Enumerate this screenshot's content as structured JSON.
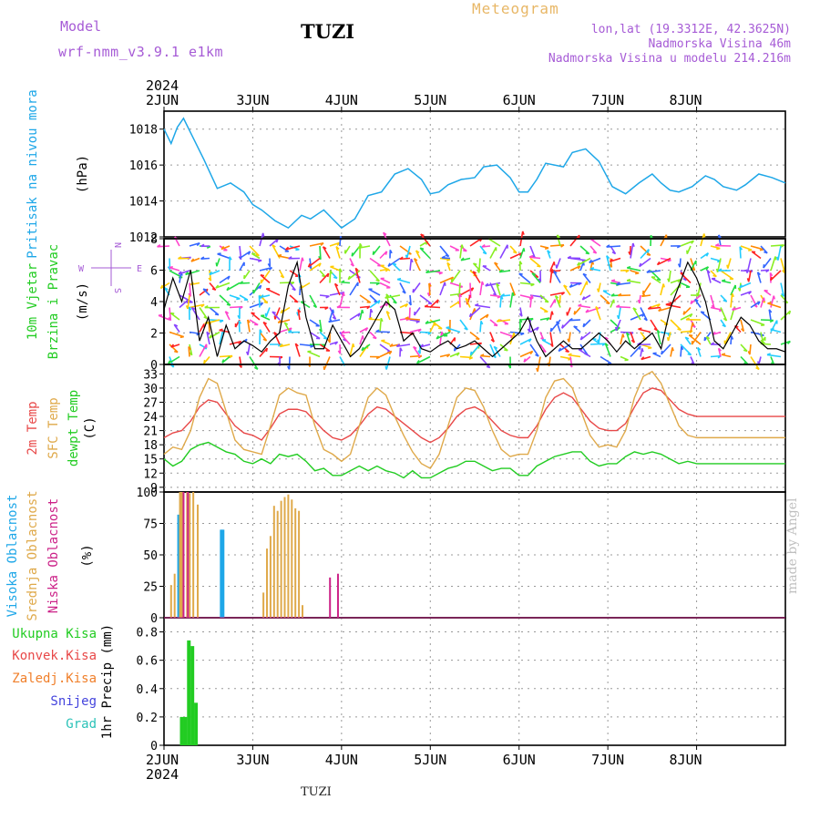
{
  "header": {
    "model_label": "Model",
    "model_name": "wrf-nmm_v3.9.1  e1km",
    "station": "TUZI",
    "meteogram": "Meteogram",
    "location": "lon,lat (19.3312E, 42.3625N)",
    "elevation": "Nadmorska Visina 46m",
    "model_elevation": "Nadmorska Visina u modelu 214.216m"
  },
  "footer": {
    "station": "TUZI",
    "watermark": "made by Angel"
  },
  "colors": {
    "pressure": "#1ea7e8",
    "temp2m": "#e84848",
    "sfc": "#dfa94a",
    "dewpt": "#22cc22",
    "high_cloud": "#1ea7e8",
    "mid_cloud": "#dfa94a",
    "low_cloud": "#cc2288",
    "total_rain": "#22cc22",
    "conv_rain": "#e84848",
    "freezing": "#f07f2a",
    "snow": "#4444dd",
    "hail": "#2bc2b8"
  },
  "chart_data": [
    {
      "type": "line",
      "name": "pressure",
      "ylabel": [
        "Pritisak na nivou mora",
        "(hPa)"
      ],
      "ylim": [
        1012,
        1019
      ],
      "yticks": [
        "1012",
        "1014",
        "1016",
        "1018"
      ],
      "x_days": [
        "2JUN",
        "3JUN",
        "4JUN",
        "5JUN",
        "6JUN",
        "7JUN",
        "8JUN"
      ],
      "year": "2024",
      "x": [
        0,
        0.08,
        0.15,
        0.22,
        0.3,
        0.45,
        0.6,
        0.75,
        0.9,
        1.0,
        1.1,
        1.25,
        1.4,
        1.55,
        1.65,
        1.8,
        2.0,
        2.15,
        2.3,
        2.45,
        2.6,
        2.75,
        2.9,
        3.0,
        3.1,
        3.2,
        3.35,
        3.5,
        3.6,
        3.75,
        3.9,
        4.0,
        4.1,
        4.2,
        4.3,
        4.5,
        4.6,
        4.75,
        4.9,
        5.05,
        5.2,
        5.35,
        5.5,
        5.6,
        5.7,
        5.8,
        5.95,
        6.1,
        6.2,
        6.3,
        6.45,
        6.55,
        6.7,
        6.85,
        7.0
      ],
      "y": [
        1018.0,
        1017.2,
        1018.1,
        1018.6,
        1017.8,
        1016.3,
        1014.7,
        1015.0,
        1014.5,
        1013.8,
        1013.5,
        1012.9,
        1012.5,
        1013.2,
        1013.0,
        1013.5,
        1012.5,
        1013.0,
        1014.3,
        1014.5,
        1015.5,
        1015.8,
        1015.2,
        1014.4,
        1014.5,
        1014.9,
        1015.2,
        1015.3,
        1015.9,
        1016.0,
        1015.3,
        1014.5,
        1014.5,
        1015.2,
        1016.1,
        1015.9,
        1016.7,
        1016.9,
        1016.2,
        1014.8,
        1014.4,
        1015.0,
        1015.5,
        1015.0,
        1014.6,
        1014.5,
        1014.8,
        1015.4,
        1015.2,
        1014.8,
        1014.6,
        1014.9,
        1015.5,
        1015.3,
        1015.0
      ]
    },
    {
      "type": "line",
      "name": "wind",
      "ylabel": [
        "10m Vjetar",
        "Brzina i Pravac",
        "(m/s)"
      ],
      "ylim": [
        0,
        8
      ],
      "yticks": [
        "0",
        "2",
        "4",
        "6",
        "8"
      ],
      "compass": {
        "n": "N",
        "s": "S",
        "e": "E",
        "w": "W"
      },
      "x": [
        0,
        0.1,
        0.2,
        0.3,
        0.4,
        0.5,
        0.6,
        0.7,
        0.8,
        0.9,
        1.0,
        1.1,
        1.2,
        1.3,
        1.4,
        1.5,
        1.6,
        1.7,
        1.8,
        1.9,
        2.0,
        2.1,
        2.2,
        2.3,
        2.4,
        2.5,
        2.6,
        2.7,
        2.8,
        2.9,
        3.0,
        3.1,
        3.2,
        3.3,
        3.4,
        3.5,
        3.6,
        3.7,
        3.8,
        3.9,
        4.0,
        4.1,
        4.2,
        4.3,
        4.4,
        4.5,
        4.6,
        4.7,
        4.8,
        4.9,
        5.0,
        5.1,
        5.2,
        5.3,
        5.4,
        5.5,
        5.6,
        5.7,
        5.8,
        5.9,
        6.0,
        6.1,
        6.2,
        6.3,
        6.4,
        6.5,
        6.6,
        6.7,
        6.8,
        6.9,
        7.0
      ],
      "y": [
        3.5,
        5.5,
        4.0,
        6.0,
        1.5,
        3.0,
        0.5,
        2.5,
        1.0,
        1.5,
        1.2,
        0.8,
        1.5,
        2.0,
        5.0,
        6.5,
        3.0,
        1.0,
        1.0,
        2.5,
        1.5,
        0.5,
        1.0,
        2.0,
        3.0,
        4.0,
        3.5,
        1.5,
        2.0,
        1.0,
        0.8,
        1.2,
        1.5,
        1.0,
        1.2,
        1.5,
        1.0,
        0.5,
        1.0,
        1.5,
        2.0,
        3.0,
        1.5,
        0.5,
        1.0,
        1.5,
        1.0,
        1.0,
        1.5,
        2.0,
        1.5,
        0.8,
        1.5,
        1.0,
        1.5,
        2.0,
        1.0,
        3.5,
        5.0,
        6.5,
        5.5,
        4.0,
        1.5,
        1.0,
        2.0,
        3.0,
        2.5,
        1.5,
        1.0,
        1.0,
        0.8
      ]
    },
    {
      "type": "line",
      "name": "temperature",
      "ylabel": [
        "2m Temp",
        "SFC Temp",
        "dewpt Temp",
        "(C)"
      ],
      "ylim": [
        8,
        35
      ],
      "yticks": [
        "9",
        "12",
        "15",
        "18",
        "21",
        "24",
        "27",
        "30",
        "33"
      ],
      "series": [
        {
          "name": "2m Temp",
          "key": "temp2m",
          "x": [
            0,
            0.1,
            0.2,
            0.3,
            0.4,
            0.5,
            0.6,
            0.7,
            0.8,
            0.9,
            1.0,
            1.1,
            1.2,
            1.3,
            1.4,
            1.5,
            1.6,
            1.7,
            1.8,
            1.9,
            2.0,
            2.1,
            2.2,
            2.3,
            2.4,
            2.5,
            2.6,
            2.7,
            2.8,
            2.9,
            3.0,
            3.1,
            3.2,
            3.3,
            3.4,
            3.5,
            3.6,
            3.7,
            3.8,
            3.9,
            4.0,
            4.1,
            4.2,
            4.3,
            4.4,
            4.5,
            4.6,
            4.7,
            4.8,
            4.9,
            5.0,
            5.1,
            5.2,
            5.3,
            5.4,
            5.5,
            5.6,
            5.7,
            5.8,
            5.9,
            6.0,
            6.1,
            6.2,
            6.3,
            6.4,
            6.5,
            6.6,
            6.7,
            6.8,
            6.9,
            7.0
          ],
          "y": [
            19.5,
            20.5,
            21.0,
            23.0,
            26.0,
            27.5,
            27.0,
            24.5,
            22.0,
            20.5,
            20.0,
            19.0,
            21.5,
            24.5,
            25.5,
            25.5,
            25.0,
            23.0,
            21.0,
            19.5,
            19.0,
            20.0,
            22.0,
            24.5,
            26.0,
            25.5,
            24.0,
            22.5,
            21.0,
            19.5,
            18.5,
            19.5,
            21.5,
            24.0,
            25.5,
            26.0,
            25.0,
            23.0,
            21.0,
            20.0,
            19.5,
            19.5,
            22.0,
            25.5,
            28.0,
            29.0,
            28.0,
            25.5,
            23.0,
            21.5,
            21.0,
            21.0,
            22.5,
            26.0,
            29.0,
            30.0,
            29.5,
            27.5,
            25.5,
            24.5,
            24.0,
            24.0,
            24.0,
            24.0,
            24.0,
            24.0,
            24.0,
            24.0,
            24.0,
            24.0,
            24.0
          ]
        },
        {
          "name": "SFC Temp",
          "key": "sfc",
          "x": [
            0,
            0.1,
            0.2,
            0.3,
            0.4,
            0.5,
            0.6,
            0.7,
            0.8,
            0.9,
            1.0,
            1.1,
            1.2,
            1.3,
            1.4,
            1.5,
            1.6,
            1.7,
            1.8,
            1.9,
            2.0,
            2.1,
            2.2,
            2.3,
            2.4,
            2.5,
            2.6,
            2.7,
            2.8,
            2.9,
            3.0,
            3.1,
            3.2,
            3.3,
            3.4,
            3.5,
            3.6,
            3.7,
            3.8,
            3.9,
            4.0,
            4.1,
            4.2,
            4.3,
            4.4,
            4.5,
            4.6,
            4.7,
            4.8,
            4.9,
            5.0,
            5.1,
            5.2,
            5.3,
            5.4,
            5.5,
            5.6,
            5.7,
            5.8,
            5.9,
            6.0,
            6.1,
            6.2,
            6.3,
            6.4,
            6.5,
            6.6,
            6.7,
            6.8,
            6.9,
            7.0
          ],
          "y": [
            16.0,
            17.5,
            17.0,
            21.0,
            28.0,
            32.0,
            31.0,
            25.0,
            19.0,
            17.0,
            16.5,
            16.0,
            22.0,
            28.5,
            30.0,
            29.0,
            28.5,
            22.0,
            17.0,
            16.0,
            14.5,
            16.0,
            22.0,
            28.0,
            30.0,
            28.5,
            24.0,
            20.0,
            16.5,
            14.0,
            13.0,
            16.0,
            22.0,
            28.0,
            30.0,
            29.5,
            26.0,
            21.0,
            17.0,
            15.5,
            16.0,
            16.0,
            21.0,
            28.0,
            31.5,
            32.0,
            30.0,
            25.0,
            20.0,
            17.5,
            18.0,
            17.5,
            21.0,
            28.0,
            32.5,
            33.5,
            31.0,
            26.5,
            22.0,
            20.0,
            19.5,
            19.5,
            19.5,
            19.5,
            19.5,
            19.5,
            19.5,
            19.5,
            19.5,
            19.5,
            19.5
          ]
        },
        {
          "name": "dewpt Temp",
          "key": "dewpt",
          "x": [
            0,
            0.1,
            0.2,
            0.3,
            0.4,
            0.5,
            0.6,
            0.7,
            0.8,
            0.9,
            1.0,
            1.1,
            1.2,
            1.3,
            1.4,
            1.5,
            1.6,
            1.7,
            1.8,
            1.9,
            2.0,
            2.1,
            2.2,
            2.3,
            2.4,
            2.5,
            2.6,
            2.7,
            2.8,
            2.9,
            3.0,
            3.1,
            3.2,
            3.3,
            3.4,
            3.5,
            3.6,
            3.7,
            3.8,
            3.9,
            4.0,
            4.1,
            4.2,
            4.3,
            4.4,
            4.5,
            4.6,
            4.7,
            4.8,
            4.9,
            5.0,
            5.1,
            5.2,
            5.3,
            5.4,
            5.5,
            5.6,
            5.7,
            5.8,
            5.9,
            6.0,
            6.1,
            6.2,
            6.3,
            6.4,
            6.5,
            6.6,
            6.7,
            6.8,
            6.9,
            7.0
          ],
          "y": [
            15.0,
            13.5,
            14.5,
            17.0,
            18.0,
            18.5,
            17.5,
            16.5,
            16.0,
            14.5,
            14.0,
            15.0,
            14.0,
            16.0,
            15.5,
            16.0,
            14.5,
            12.5,
            13.0,
            11.5,
            11.5,
            12.5,
            13.5,
            12.5,
            13.5,
            12.5,
            12.0,
            11.0,
            12.5,
            11.0,
            11.0,
            12.0,
            13.0,
            13.5,
            14.5,
            14.5,
            13.5,
            12.5,
            13.0,
            13.0,
            11.5,
            11.5,
            13.5,
            14.5,
            15.5,
            16.0,
            16.5,
            16.5,
            14.5,
            13.5,
            14.0,
            14.0,
            15.5,
            16.5,
            16.0,
            16.5,
            16.0,
            15.0,
            14.0,
            14.5,
            14.0,
            14.0,
            14.0,
            14.0,
            14.0,
            14.0,
            14.0,
            14.0,
            14.0,
            14.0,
            14.0
          ]
        }
      ]
    },
    {
      "type": "bar",
      "name": "clouds",
      "ylabel": [
        "Visoka Oblacnost",
        "Srednja Oblacnost",
        "Niska Oblacnost",
        "(%)"
      ],
      "ylim": [
        0,
        100
      ],
      "yticks": [
        "0",
        "25",
        "50",
        "75",
        "100"
      ],
      "series": [
        {
          "name": "Visoka Oblacnost",
          "key": "high_cloud",
          "x": [
            0.17,
            0.4,
            0.65,
            0.66,
            3.7,
            5.45
          ],
          "values": [
            82,
            2,
            70,
            70,
            1,
            1
          ]
        },
        {
          "name": "Srednja Oblacnost",
          "key": "mid_cloud",
          "x": [
            0.08,
            0.12,
            0.18,
            0.2,
            0.26,
            0.29,
            0.33,
            0.38,
            1.12,
            1.16,
            1.2,
            1.24,
            1.28,
            1.32,
            1.36,
            1.4,
            1.44,
            1.48,
            1.52,
            1.56
          ],
          "values": [
            26,
            35,
            100,
            100,
            100,
            99,
            100,
            90,
            20,
            55,
            65,
            89,
            85,
            93,
            96,
            98,
            94,
            87,
            85,
            10
          ]
        },
        {
          "name": "Niska Oblacnost",
          "key": "low_cloud",
          "x": [
            0.22,
            0.27,
            1.87,
            1.96,
            5.47,
            6.43
          ],
          "values": [
            100,
            100,
            32,
            35,
            1,
            7
          ]
        }
      ]
    },
    {
      "type": "bar",
      "name": "precipitation",
      "ylabel": [
        "1hr Precip (mm)"
      ],
      "legend": [
        "Ukupna Kisa",
        "Konvek.Kisa",
        "Zaledj.Kisa",
        "Snijeg",
        "Grad"
      ],
      "ylim": [
        0,
        0.9
      ],
      "yticks": [
        "0",
        "0.2",
        "0.4",
        "0.6",
        "0.8"
      ],
      "series": [
        {
          "name": "Ukupna Kisa",
          "key": "total_rain",
          "x": [
            0.2,
            0.24,
            0.28,
            0.32,
            0.36
          ],
          "values": [
            0.2,
            0.2,
            0.74,
            0.7,
            0.3
          ]
        }
      ]
    }
  ]
}
